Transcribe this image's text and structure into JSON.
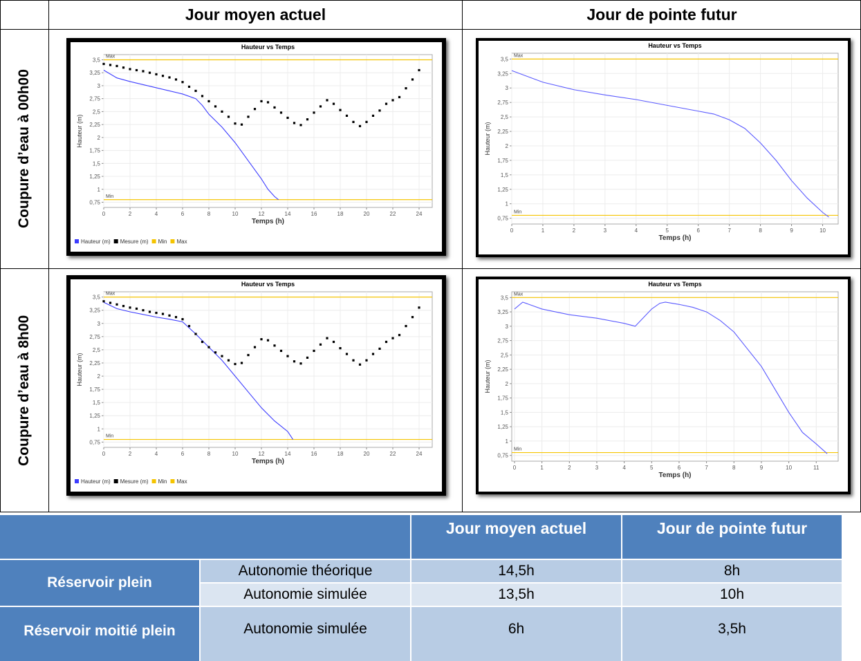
{
  "grid": {
    "columns": [
      "Jour moyen actuel",
      "Jour de pointe futur"
    ],
    "rows": [
      "Coupure d’eau à 00h00",
      "Coupure d’eau à 8h00"
    ]
  },
  "chart_data": [
    {
      "type": "line",
      "title": "Hauteur vs Temps",
      "x_label": "Temps (h)",
      "y_label": "Hauteur (m)",
      "legend": true,
      "grid": true,
      "xlim": [
        0,
        25
      ],
      "xticks": [
        0,
        2,
        4,
        6,
        8,
        10,
        12,
        14,
        16,
        18,
        20,
        22,
        24
      ],
      "ylim": [
        0.65,
        3.6
      ],
      "yticks": [
        {
          "value": 0.75,
          "label": "0,75"
        },
        1,
        {
          "value": 1.25,
          "label": "1,25"
        },
        {
          "value": 1.5,
          "label": "1,5"
        },
        {
          "value": 1.75,
          "label": "1,75"
        },
        2,
        {
          "value": 2.25,
          "label": "2,25"
        },
        {
          "value": 2.5,
          "label": "2,5"
        },
        {
          "value": 2.75,
          "label": "2,75"
        },
        3,
        {
          "value": 3.25,
          "label": "3,25"
        },
        {
          "value": 3.5,
          "label": "3,5"
        }
      ],
      "series": [
        {
          "name": "Hauteur (m)",
          "style": "line",
          "color": "#3c3cff",
          "x": [
            0,
            1,
            2,
            3,
            4,
            5,
            6,
            7,
            7.5,
            8,
            9,
            10,
            11,
            12,
            12.5,
            13,
            13.3
          ],
          "values": [
            3.3,
            3.15,
            3.08,
            3.02,
            2.96,
            2.9,
            2.84,
            2.75,
            2.62,
            2.45,
            2.2,
            1.9,
            1.55,
            1.2,
            1.0,
            0.86,
            0.8
          ]
        },
        {
          "name": "Mesure (m)",
          "style": "dots",
          "color": "#000000",
          "x": [
            0,
            0.5,
            1,
            1.5,
            2,
            2.5,
            3,
            3.5,
            4,
            4.5,
            5,
            5.5,
            6,
            6.5,
            7,
            7.5,
            8,
            8.5,
            9,
            9.5,
            10,
            10.5,
            11,
            11.5,
            12,
            12.5,
            13,
            13.5,
            14,
            14.5,
            15,
            15.5,
            16,
            16.5,
            17,
            17.5,
            18,
            18.5,
            19,
            19.5,
            20,
            20.5,
            21,
            21.5,
            22,
            22.5,
            23,
            23.5,
            24
          ],
          "values": [
            3.42,
            3.4,
            3.38,
            3.35,
            3.32,
            3.3,
            3.28,
            3.25,
            3.22,
            3.19,
            3.16,
            3.12,
            3.07,
            2.98,
            2.9,
            2.8,
            2.7,
            2.6,
            2.5,
            2.4,
            2.27,
            2.25,
            2.4,
            2.55,
            2.7,
            2.68,
            2.58,
            2.48,
            2.38,
            2.28,
            2.24,
            2.35,
            2.48,
            2.6,
            2.72,
            2.65,
            2.53,
            2.42,
            2.3,
            2.22,
            2.3,
            2.42,
            2.52,
            2.65,
            2.72,
            2.78,
            2.95,
            3.12,
            3.3
          ]
        }
      ],
      "hlines": [
        {
          "name": "Min",
          "value": 0.8,
          "color": "#f5c400"
        },
        {
          "name": "Max",
          "value": 3.5,
          "color": "#f5c400"
        }
      ]
    },
    {
      "type": "line",
      "title": "Hauteur vs Temps",
      "x_label": "Temps (h)",
      "y_label": "Hauteur (m)",
      "legend": false,
      "grid": true,
      "xlim": [
        0,
        10.5
      ],
      "xticks": [
        0,
        1,
        2,
        3,
        4,
        5,
        6,
        7,
        8,
        9,
        10
      ],
      "ylim": [
        0.65,
        3.6
      ],
      "yticks": [
        {
          "value": 0.75,
          "label": "0,75"
        },
        1,
        {
          "value": 1.25,
          "label": "1,25"
        },
        {
          "value": 1.5,
          "label": "1,5"
        },
        {
          "value": 1.75,
          "label": "1,75"
        },
        2,
        {
          "value": 2.25,
          "label": "2,25"
        },
        {
          "value": 2.5,
          "label": "2,5"
        },
        {
          "value": 2.75,
          "label": "2,75"
        },
        3,
        {
          "value": 3.25,
          "label": "3,25"
        },
        {
          "value": 3.5,
          "label": "3,5"
        }
      ],
      "series": [
        {
          "style": "line",
          "color": "#5a5aff",
          "x": [
            0,
            0.5,
            1,
            2,
            3,
            4,
            5,
            6,
            6.5,
            7,
            7.5,
            8,
            8.5,
            9,
            9.5,
            10,
            10.2
          ],
          "values": [
            3.3,
            3.2,
            3.1,
            2.97,
            2.88,
            2.8,
            2.7,
            2.6,
            2.55,
            2.45,
            2.3,
            2.05,
            1.75,
            1.4,
            1.1,
            0.85,
            0.77
          ]
        }
      ],
      "hlines": [
        {
          "name": "Min",
          "value": 0.8,
          "color": "#f5c400"
        },
        {
          "name": "Max",
          "value": 3.5,
          "color": "#f5c400"
        }
      ]
    },
    {
      "type": "line",
      "title": "Hauteur vs Temps",
      "x_label": "Temps (h)",
      "y_label": "Hauteur (m)",
      "legend": true,
      "grid": true,
      "xlim": [
        0,
        25
      ],
      "xticks": [
        0,
        2,
        4,
        6,
        8,
        10,
        12,
        14,
        16,
        18,
        20,
        22,
        24
      ],
      "ylim": [
        0.65,
        3.6
      ],
      "yticks": [
        {
          "value": 0.75,
          "label": "0,75"
        },
        1,
        {
          "value": 1.25,
          "label": "1,25"
        },
        {
          "value": 1.5,
          "label": "1,5"
        },
        {
          "value": 1.75,
          "label": "1,75"
        },
        2,
        {
          "value": 2.25,
          "label": "2,25"
        },
        {
          "value": 2.5,
          "label": "2,5"
        },
        {
          "value": 2.75,
          "label": "2,75"
        },
        3,
        {
          "value": 3.25,
          "label": "3,25"
        },
        {
          "value": 3.5,
          "label": "3,5"
        }
      ],
      "series": [
        {
          "name": "Hauteur (m)",
          "style": "line",
          "color": "#3c3cff",
          "x": [
            0,
            1,
            2,
            3,
            4,
            5,
            6,
            7,
            8,
            9,
            10,
            11,
            12,
            13,
            14,
            14.4
          ],
          "values": [
            3.4,
            3.28,
            3.22,
            3.17,
            3.12,
            3.08,
            3.03,
            2.8,
            2.55,
            2.3,
            2.0,
            1.7,
            1.4,
            1.15,
            0.95,
            0.8
          ]
        },
        {
          "name": "Mesure (m)",
          "style": "dots",
          "color": "#000000",
          "x": [
            0,
            0.5,
            1,
            1.5,
            2,
            2.5,
            3,
            3.5,
            4,
            4.5,
            5,
            5.5,
            6,
            6.5,
            7,
            7.5,
            8,
            8.5,
            9,
            9.5,
            10,
            10.5,
            11,
            11.5,
            12,
            12.5,
            13,
            13.5,
            14,
            14.5,
            15,
            15.5,
            16,
            16.5,
            17,
            17.5,
            18,
            18.5,
            19,
            19.5,
            20,
            20.5,
            21,
            21.5,
            22,
            22.5,
            23,
            23.5,
            24
          ],
          "values": [
            3.42,
            3.39,
            3.36,
            3.33,
            3.3,
            3.28,
            3.25,
            3.22,
            3.2,
            3.18,
            3.15,
            3.12,
            3.08,
            2.95,
            2.8,
            2.65,
            2.55,
            2.45,
            2.38,
            2.3,
            2.23,
            2.25,
            2.4,
            2.55,
            2.7,
            2.68,
            2.58,
            2.48,
            2.38,
            2.28,
            2.24,
            2.35,
            2.48,
            2.6,
            2.72,
            2.65,
            2.53,
            2.42,
            2.3,
            2.22,
            2.3,
            2.42,
            2.52,
            2.65,
            2.72,
            2.78,
            2.95,
            3.12,
            3.3
          ]
        }
      ],
      "hlines": [
        {
          "name": "Min",
          "value": 0.8,
          "color": "#f5c400"
        },
        {
          "name": "Max",
          "value": 3.5,
          "color": "#f5c400"
        }
      ]
    },
    {
      "type": "line",
      "title": "Hauteur vs Temps",
      "x_label": "Temps (h)",
      "y_label": "Hauteur (m)",
      "legend": false,
      "grid": true,
      "xlim": [
        -0.1,
        11.8
      ],
      "xticks": [
        0,
        1,
        2,
        3,
        4,
        5,
        6,
        7,
        8,
        9,
        10,
        11
      ],
      "ylim": [
        0.65,
        3.6
      ],
      "yticks": [
        {
          "value": 0.75,
          "label": "0,75"
        },
        1,
        {
          "value": 1.25,
          "label": "1,25"
        },
        {
          "value": 1.5,
          "label": "1,5"
        },
        {
          "value": 1.75,
          "label": "1,75"
        },
        2,
        {
          "value": 2.25,
          "label": "2,25"
        },
        {
          "value": 2.5,
          "label": "2,5"
        },
        {
          "value": 2.75,
          "label": "2,75"
        },
        3,
        {
          "value": 3.25,
          "label": "3,25"
        },
        {
          "value": 3.5,
          "label": "3,5"
        }
      ],
      "series": [
        {
          "style": "line",
          "color": "#5a5aff",
          "x": [
            0,
            0.3,
            1,
            2,
            3,
            4,
            4.4,
            4.8,
            5,
            5.3,
            5.5,
            6,
            6.5,
            7,
            7.5,
            8,
            8.5,
            9,
            9.5,
            10,
            10.5,
            11,
            11.4
          ],
          "values": [
            3.3,
            3.42,
            3.3,
            3.2,
            3.14,
            3.05,
            3.0,
            3.2,
            3.3,
            3.4,
            3.42,
            3.38,
            3.33,
            3.25,
            3.1,
            2.9,
            2.6,
            2.3,
            1.9,
            1.5,
            1.15,
            0.95,
            0.78
          ]
        }
      ],
      "hlines": [
        {
          "name": "Min",
          "value": 0.8,
          "color": "#f5c400"
        },
        {
          "name": "Max",
          "value": 3.5,
          "color": "#f5c400"
        }
      ]
    }
  ],
  "table": {
    "columns": [
      "Jour moyen actuel",
      "Jour de pointe futur"
    ],
    "groups": [
      {
        "label": "Réservoir plein",
        "rows": [
          {
            "label": "Autonomie théorique",
            "values": [
              "14,5h",
              "8h"
            ]
          },
          {
            "label": "Autonomie simulée",
            "values": [
              "13,5h",
              "10h"
            ]
          }
        ]
      },
      {
        "label": "Réservoir moitié plein",
        "rows": [
          {
            "label": "Autonomie simulée",
            "values": [
              "6h",
              "3,5h"
            ]
          }
        ]
      }
    ]
  }
}
